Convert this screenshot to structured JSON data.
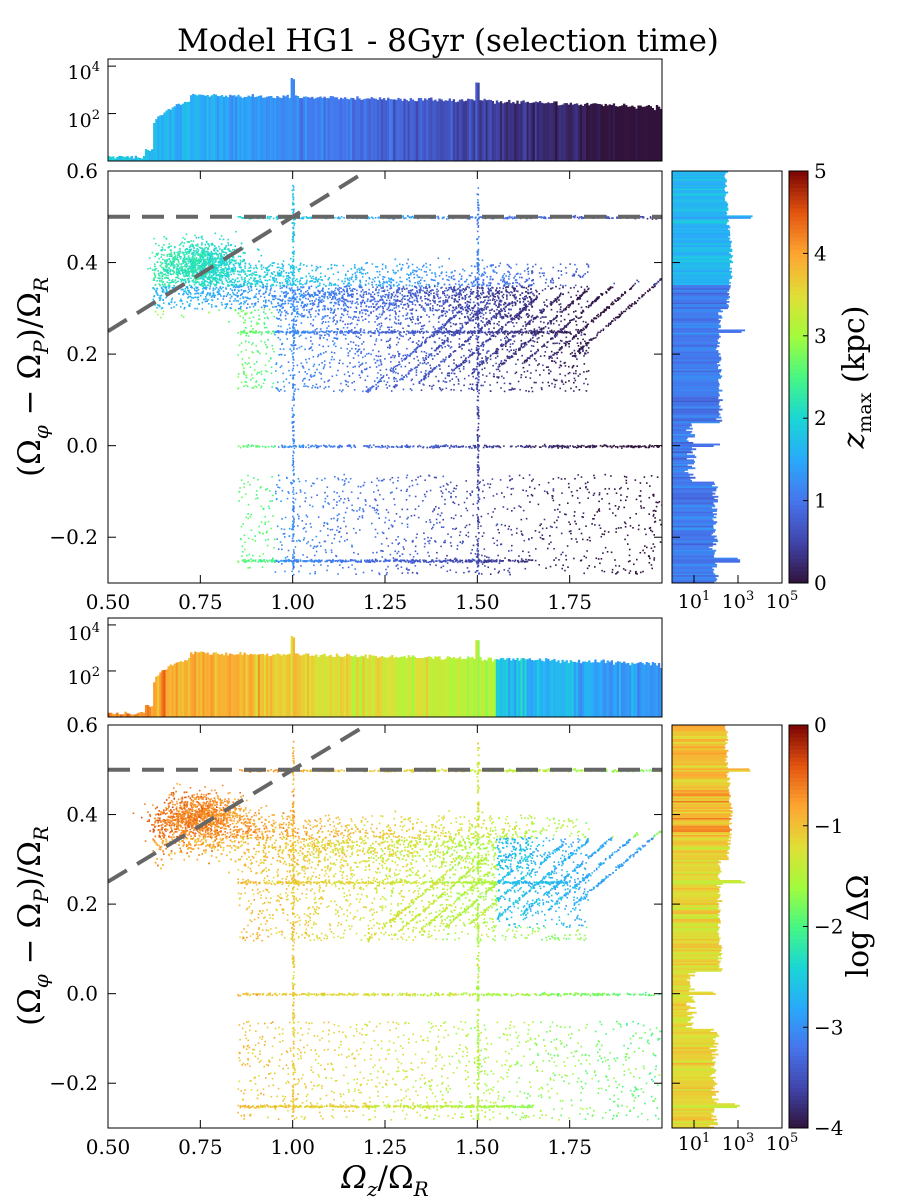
{
  "title": "Model HG1 - 8Gyr (selection time)",
  "chart_data": [
    {
      "type": "scatter",
      "panel": "top",
      "title": "Model HG1 - 8Gyr (selection time)",
      "xlabel": "Ω_z/Ω_R",
      "ylabel": "(Ω_φ − Ω_P)/Ω_R",
      "xlim": [
        0.5,
        2.0
      ],
      "ylim": [
        -0.3,
        0.6
      ],
      "xticks": [
        0.5,
        0.75,
        1.0,
        1.25,
        1.5,
        1.75
      ],
      "xtick_labels": [
        "0.50",
        "0.75",
        "1.00",
        "1.25",
        "1.50",
        "1.75"
      ],
      "yticks": [
        -0.2,
        0.0,
        0.2,
        0.4,
        0.6
      ],
      "ytick_labels": [
        "−0.2",
        "0.0",
        "0.2",
        "0.4",
        "0.6"
      ],
      "color_by": "z_max (kpc)",
      "colorbar": {
        "label": "z_max (kpc)",
        "min": 0,
        "max": 5,
        "ticks": [
          0,
          1,
          2,
          3,
          4,
          5
        ],
        "tick_labels": [
          "0",
          "1",
          "2",
          "3",
          "4",
          "5"
        ],
        "colormap": "turbo"
      },
      "reference_lines": [
        {
          "kind": "horizontal",
          "y": 0.5,
          "style": "dashed",
          "color": "#666666"
        },
        {
          "kind": "diagonal",
          "points": [
            [
              0.5,
              0.25
            ],
            [
              1.2,
              0.6
            ]
          ],
          "style": "dashed",
          "color": "#666666"
        }
      ],
      "resonance_lines_y": [
        0.5,
        0.25,
        0.0,
        -0.25
      ],
      "resonance_lines_x": [
        1.0,
        1.5
      ],
      "top_histogram": {
        "yscale": "log",
        "ylim": [
          1,
          20000
        ],
        "yticks": [
          100,
          10000
        ],
        "ytick_labels": [
          "10^2",
          "10^4"
        ],
        "spikes_at": [
          1.0,
          1.5
        ]
      },
      "side_histogram": {
        "xscale": "log",
        "xlim": [
          1,
          100000
        ],
        "xticks": [
          10,
          1000,
          100000
        ],
        "xtick_labels": [
          "10^1",
          "10^3",
          "10^5"
        ],
        "spikes_at": [
          0.5,
          0.25,
          0.0,
          -0.25
        ]
      }
    },
    {
      "type": "scatter",
      "panel": "bottom",
      "xlabel": "Ω_z/Ω_R",
      "ylabel": "(Ω_φ − Ω_P)/Ω_R",
      "xlim": [
        0.5,
        2.0
      ],
      "ylim": [
        -0.3,
        0.6
      ],
      "xticks": [
        0.5,
        0.75,
        1.0,
        1.25,
        1.5,
        1.75
      ],
      "xtick_labels": [
        "0.50",
        "0.75",
        "1.00",
        "1.25",
        "1.50",
        "1.75"
      ],
      "yticks": [
        -0.2,
        0.0,
        0.2,
        0.4,
        0.6
      ],
      "ytick_labels": [
        "−0.2",
        "0.0",
        "0.2",
        "0.4",
        "0.6"
      ],
      "color_by": "log ΔΩ",
      "colorbar": {
        "label": "log ΔΩ",
        "min": -4,
        "max": 0,
        "ticks": [
          -4,
          -3,
          -2,
          -1,
          0
        ],
        "tick_labels": [
          "−4",
          "−3",
          "−2",
          "−1",
          "0"
        ],
        "colormap": "turbo"
      },
      "reference_lines": [
        {
          "kind": "horizontal",
          "y": 0.5,
          "style": "dashed",
          "color": "#666666"
        },
        {
          "kind": "diagonal",
          "points": [
            [
              0.5,
              0.25
            ],
            [
              1.2,
              0.6
            ]
          ],
          "style": "dashed",
          "color": "#666666"
        }
      ],
      "resonance_lines_y": [
        0.5,
        0.25,
        0.0,
        -0.25
      ],
      "resonance_lines_x": [
        1.0,
        1.5
      ],
      "top_histogram": {
        "yscale": "log",
        "ylim": [
          1,
          20000
        ],
        "yticks": [
          100,
          10000
        ],
        "ytick_labels": [
          "10^2",
          "10^4"
        ],
        "spikes_at": [
          1.0,
          1.5
        ]
      },
      "side_histogram": {
        "xscale": "log",
        "xlim": [
          1,
          100000
        ],
        "xticks": [
          10,
          1000,
          100000
        ],
        "xtick_labels": [
          "10^1",
          "10^3",
          "10^5"
        ],
        "spikes_at": [
          0.5,
          0.25,
          0.0,
          -0.25
        ]
      }
    }
  ],
  "labels": {
    "ylabel_text": "(Ω",
    "ylabel_sub1": "φ",
    "ylabel_mid": " − Ω",
    "ylabel_sub2": "P",
    "ylabel_end": ")/Ω",
    "ylabel_sub3": "R",
    "xlabel_main": "Ω",
    "xlabel_sub1": "z",
    "xlabel_mid": "/Ω",
    "xlabel_sub2": "R",
    "cbar1_main": "z",
    "cbar1_sub": "max",
    "cbar1_unit": " (kpc)",
    "cbar2_text": "log ΔΩ",
    "hist_y_base": "10",
    "hist_y_exp2": "2",
    "hist_y_exp4": "4",
    "hist_x_exp1": "1",
    "hist_x_exp3": "3",
    "hist_x_exp5": "5"
  }
}
